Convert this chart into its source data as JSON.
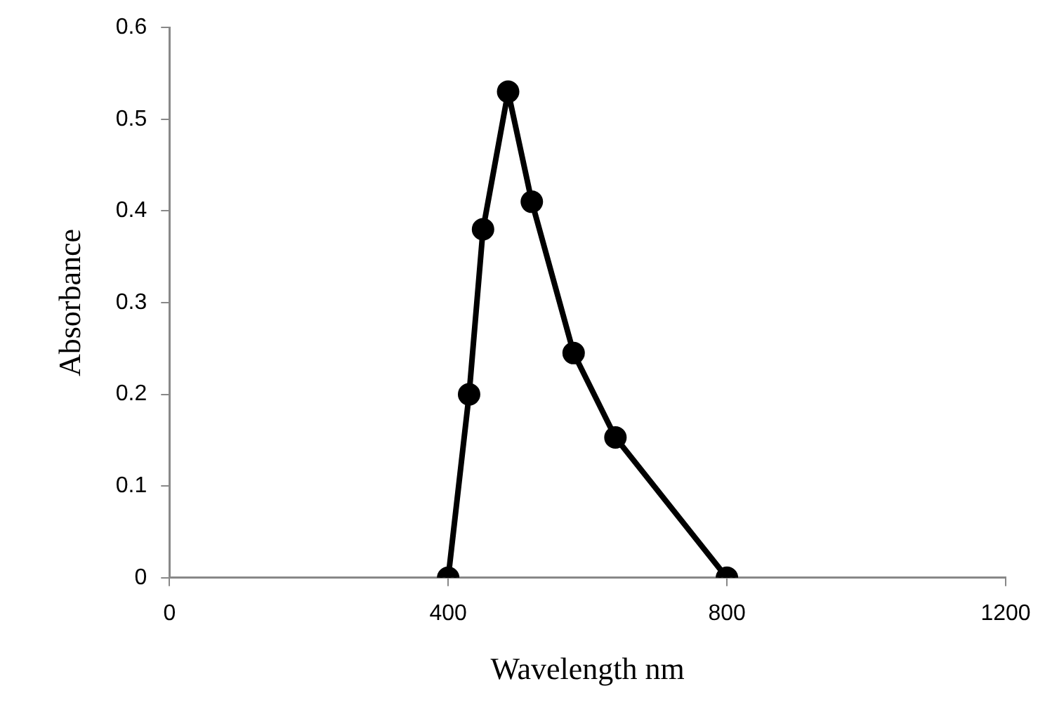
{
  "chart_data": {
    "type": "line",
    "xlabel": "Wavelength nm",
    "ylabel": "Absorbance",
    "series": [
      {
        "color": "#000000",
        "x": [
          400,
          430,
          450,
          486,
          520,
          580,
          640,
          800
        ],
        "values": [
          0,
          0.2,
          0.38,
          0.53,
          0.41,
          0.245,
          0.153,
          0
        ]
      }
    ],
    "xlim": [
      0,
      1200
    ],
    "xticks": [
      0,
      400,
      800,
      1200
    ],
    "ylim": [
      0,
      0.6
    ],
    "yticks": [
      0,
      0.1,
      0.2,
      0.3,
      0.4,
      0.5,
      0.6
    ],
    "grid": false,
    "marker": "circle",
    "line_style": "solid"
  }
}
